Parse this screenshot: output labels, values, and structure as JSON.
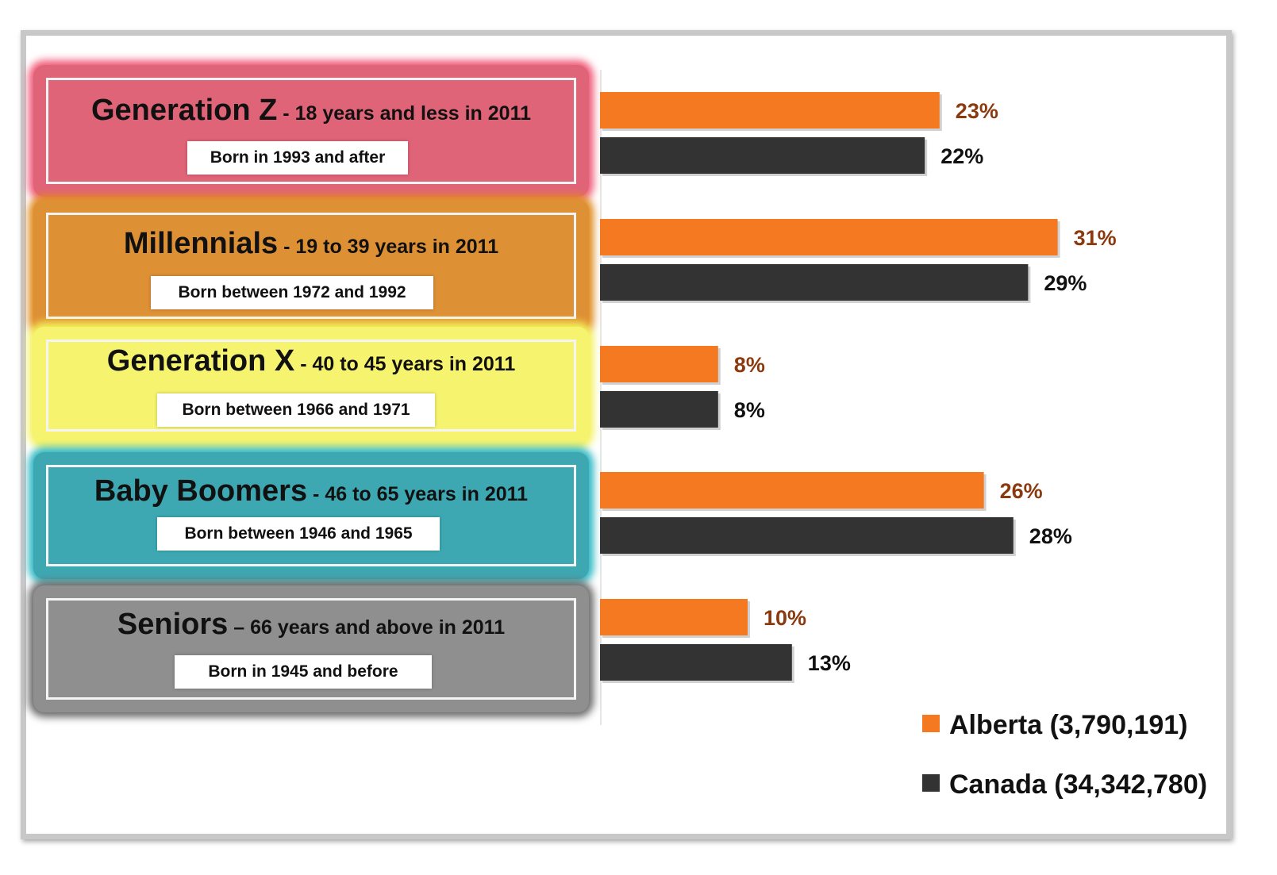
{
  "generations": [
    {
      "name": "Generation Z",
      "range": " - 18 years and less in 2011",
      "born": "Born in 1993 and after",
      "color": "#e06478",
      "glow": "#f05a78"
    },
    {
      "name": "Millennials",
      "range": " -  19 to 39 years in 2011",
      "born": "Born between 1972 and 1992",
      "color": "#de9035",
      "glow": "#e08a1e"
    },
    {
      "name": "Generation X",
      "range": " -  40 to 45 years in 2011",
      "born": "Born between 1966 and 1971",
      "color": "#f6f46e",
      "glow": "#f4f25a"
    },
    {
      "name": "Baby Boomers",
      "range": " -  46 to 65 years in 2011",
      "born": "Born between 1946 and 1965",
      "color": "#3ea8b2",
      "glow": "#2cb8c4"
    },
    {
      "name": "Seniors",
      "range": " –  66 years and above in 2011",
      "born": "Born in 1945 and before",
      "color": "#8f8f8f",
      "glow": "#6a6a6a"
    }
  ],
  "chart_data": {
    "type": "bar",
    "orientation": "horizontal",
    "categories": [
      "Generation Z",
      "Millennials",
      "Generation X",
      "Baby Boomers",
      "Seniors"
    ],
    "series": [
      {
        "name": "Alberta (3,790,191)",
        "values": [
          23,
          31,
          8,
          26,
          10
        ],
        "labels": [
          "23%",
          "31%",
          "8%",
          "26%",
          "10%"
        ],
        "color": "#f47920",
        "label_color": "#8b3a0f"
      },
      {
        "name": "Canada (34,342,780)",
        "values": [
          22,
          29,
          8,
          28,
          13
        ],
        "labels": [
          "22%",
          "29%",
          "8%",
          "28%",
          "13%"
        ],
        "color": "#333333",
        "label_color": "#111111"
      }
    ],
    "value_unit": "%",
    "xlim": [
      0,
      44
    ],
    "grid": false,
    "legend_position": "bottom-right"
  },
  "legend": {
    "alberta_label": "Alberta (3,790,191)",
    "canada_label": "Canada (34,342,780)",
    "alberta_color": "#f47920",
    "canada_color": "#333333"
  }
}
